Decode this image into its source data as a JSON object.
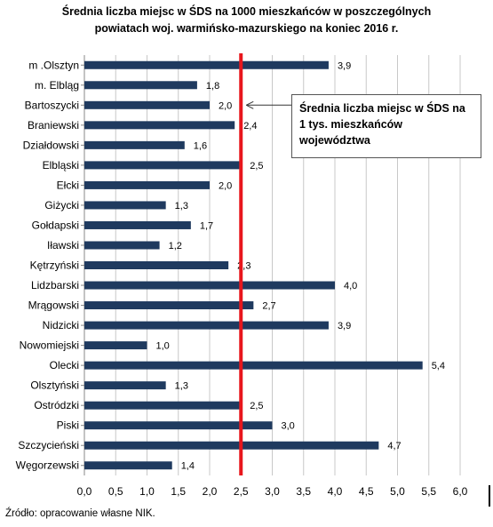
{
  "title_line1": "Średnia liczba miejsc w ŚDS na 1000  mieszkańców  w poszczególnych",
  "title_line2": "powiatach  woj. warmińsko-mazurskiego  na koniec 2016  r.",
  "source": "Źródło: opracowanie własne NIK.",
  "callout": "Średnia liczba miejsc w ŚDS na 1 tys. mieszkańców województwa",
  "colors": {
    "bar": "#1f3a5f",
    "reference": "#e8161c",
    "grid": "#c8c8c8"
  },
  "chart_data": {
    "type": "bar",
    "orientation": "horizontal",
    "categories": [
      "m .Olsztyn",
      "m. Elbląg",
      "Bartoszycki",
      "Braniewski",
      "Działdowski",
      "Elbląski",
      "Ełcki",
      "Giżycki",
      "Gołdapski",
      "Iławski",
      "Kętrzyński",
      "Lidzbarski",
      "Mrągowski",
      "Nidzicki",
      "Nowomiejski",
      "Olecki",
      "Olsztyński",
      "Ostródzki",
      "Piski",
      "Szczycieński",
      "Węgorzewski"
    ],
    "values": [
      3.9,
      1.8,
      2.0,
      2.4,
      1.6,
      2.5,
      2.0,
      1.3,
      1.7,
      1.2,
      2.3,
      4.0,
      2.7,
      3.9,
      1.0,
      5.4,
      1.3,
      2.5,
      3.0,
      4.7,
      1.4
    ],
    "value_labels": [
      "3,9",
      "1,8",
      "2,0",
      "2,4",
      "1,6",
      "2,5",
      "2,0",
      "1,3",
      "1,7",
      "1,2",
      "2,3",
      "4,0",
      "2,7",
      "3,9",
      "1,0",
      "5,4",
      "1,3",
      "2,5",
      "3,0",
      "4,7",
      "1,4"
    ],
    "xlim": [
      0,
      6
    ],
    "x_ticks": [
      0,
      0.5,
      1,
      1.5,
      2,
      2.5,
      3,
      3.5,
      4,
      4.5,
      5,
      5.5,
      6
    ],
    "x_tick_labels": [
      "0,0",
      "0,5",
      "1,0",
      "1,5",
      "2,0",
      "2,5",
      "3,0",
      "3,5",
      "4,0",
      "4,5",
      "5,0",
      "5,5",
      "6,0"
    ],
    "reference_line": 2.5,
    "grid": true
  }
}
